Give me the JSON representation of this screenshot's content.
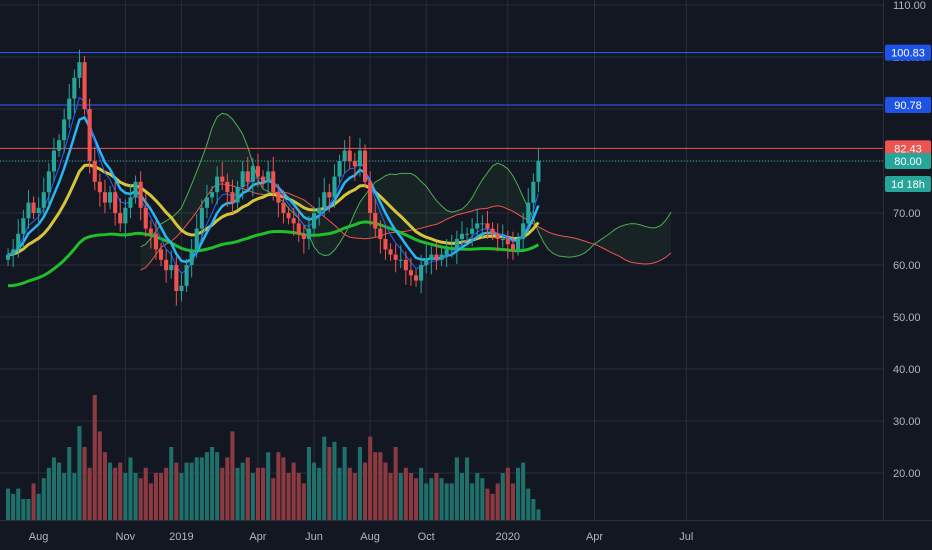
{
  "colors": {
    "background": "#131722",
    "grid": "#2a2e39",
    "candle_up": "#26a69a",
    "candle_down": "#ef5350",
    "volume_up": "#1f6f6a",
    "volume_down": "#8a3a40",
    "ema_fast": "#2962ff",
    "ema_fast2": "#29b6f6",
    "ema_mid": "#d4c43a",
    "ema_slow": "#1fbf2a",
    "cloud_green": "#4caf50",
    "cloud_red": "#ef5350",
    "hline_blue": "#2962ff",
    "hline_red": "#ef5350",
    "dotted_price": "#26a69a"
  },
  "chart_data": {
    "type": "candlestick",
    "title": "",
    "y_axis": {
      "ticks": [
        "110.00",
        "100.00",
        "90.00",
        "80.00",
        "70.00",
        "60.00",
        "50.00",
        "40.00",
        "30.00",
        "20.00"
      ],
      "tick_values": [
        110,
        100,
        90,
        80,
        70,
        60,
        50,
        40,
        30,
        20
      ],
      "range": [
        12,
        111
      ]
    },
    "x_axis": {
      "ticks": [
        "Aug",
        "Nov",
        "2019",
        "Apr",
        "Jun",
        "Aug",
        "Oct",
        "2020",
        "Apr",
        "Jul"
      ],
      "tick_bars": [
        6,
        23,
        34,
        49,
        60,
        71,
        82,
        98,
        115,
        133
      ]
    },
    "price_tags": [
      {
        "label": "100.83",
        "value": 100.83,
        "kind": "blue"
      },
      {
        "label": "90.78",
        "value": 90.78,
        "kind": "blue"
      },
      {
        "label": "82.43",
        "value": 82.43,
        "kind": "red"
      },
      {
        "label": "80.00",
        "value": 80.0,
        "kind": "teal"
      }
    ],
    "countdown": "1d 18h",
    "horizontal_lines": [
      {
        "value": 100.83,
        "kind": "blue"
      },
      {
        "value": 90.78,
        "kind": "blue"
      },
      {
        "value": 82.43,
        "kind": "red"
      }
    ],
    "closes": [
      62,
      63,
      66,
      69,
      72,
      70,
      71,
      74,
      78,
      82,
      84,
      88,
      92,
      96,
      99,
      90,
      80,
      76,
      74,
      72,
      74,
      70,
      68,
      71,
      73,
      76,
      71,
      67,
      66,
      63,
      61,
      59,
      60,
      55,
      56,
      60,
      63,
      67,
      71,
      73,
      74,
      77,
      76,
      74,
      72,
      75,
      78,
      76,
      79,
      77,
      76,
      78,
      74,
      72,
      70,
      69,
      68,
      66,
      65,
      67,
      70,
      71,
      74,
      73,
      77,
      80,
      82,
      80,
      79,
      82,
      76,
      70,
      67,
      65,
      63,
      62,
      61,
      61,
      59,
      58,
      57,
      60,
      61,
      62,
      61,
      62,
      63,
      63,
      65,
      66,
      66,
      67,
      68,
      68,
      67,
      66,
      65,
      65,
      64,
      63,
      65,
      68,
      72,
      76,
      80
    ],
    "volumes": [
      17,
      16,
      17,
      15,
      15,
      18,
      16,
      19,
      21,
      23,
      22,
      20,
      25,
      20,
      29,
      25,
      21,
      35,
      28,
      24,
      22,
      21,
      22,
      20,
      23,
      20,
      19,
      21,
      18,
      20,
      20,
      21,
      25,
      22,
      20,
      22,
      22,
      23,
      23,
      24,
      25,
      24,
      21,
      23,
      28,
      21,
      22,
      23,
      20,
      21,
      21,
      24,
      19,
      24,
      23,
      20,
      22,
      20,
      18,
      25,
      22,
      21,
      27,
      25,
      26,
      21,
      25,
      21,
      20,
      25,
      22,
      27,
      24,
      24,
      22,
      20,
      25,
      20,
      21,
      20,
      19,
      21,
      18,
      19,
      20,
      19,
      18,
      18,
      23,
      20,
      23,
      18,
      20,
      19,
      17,
      16,
      18,
      20,
      21,
      18,
      21,
      22,
      17,
      15,
      13
    ]
  }
}
